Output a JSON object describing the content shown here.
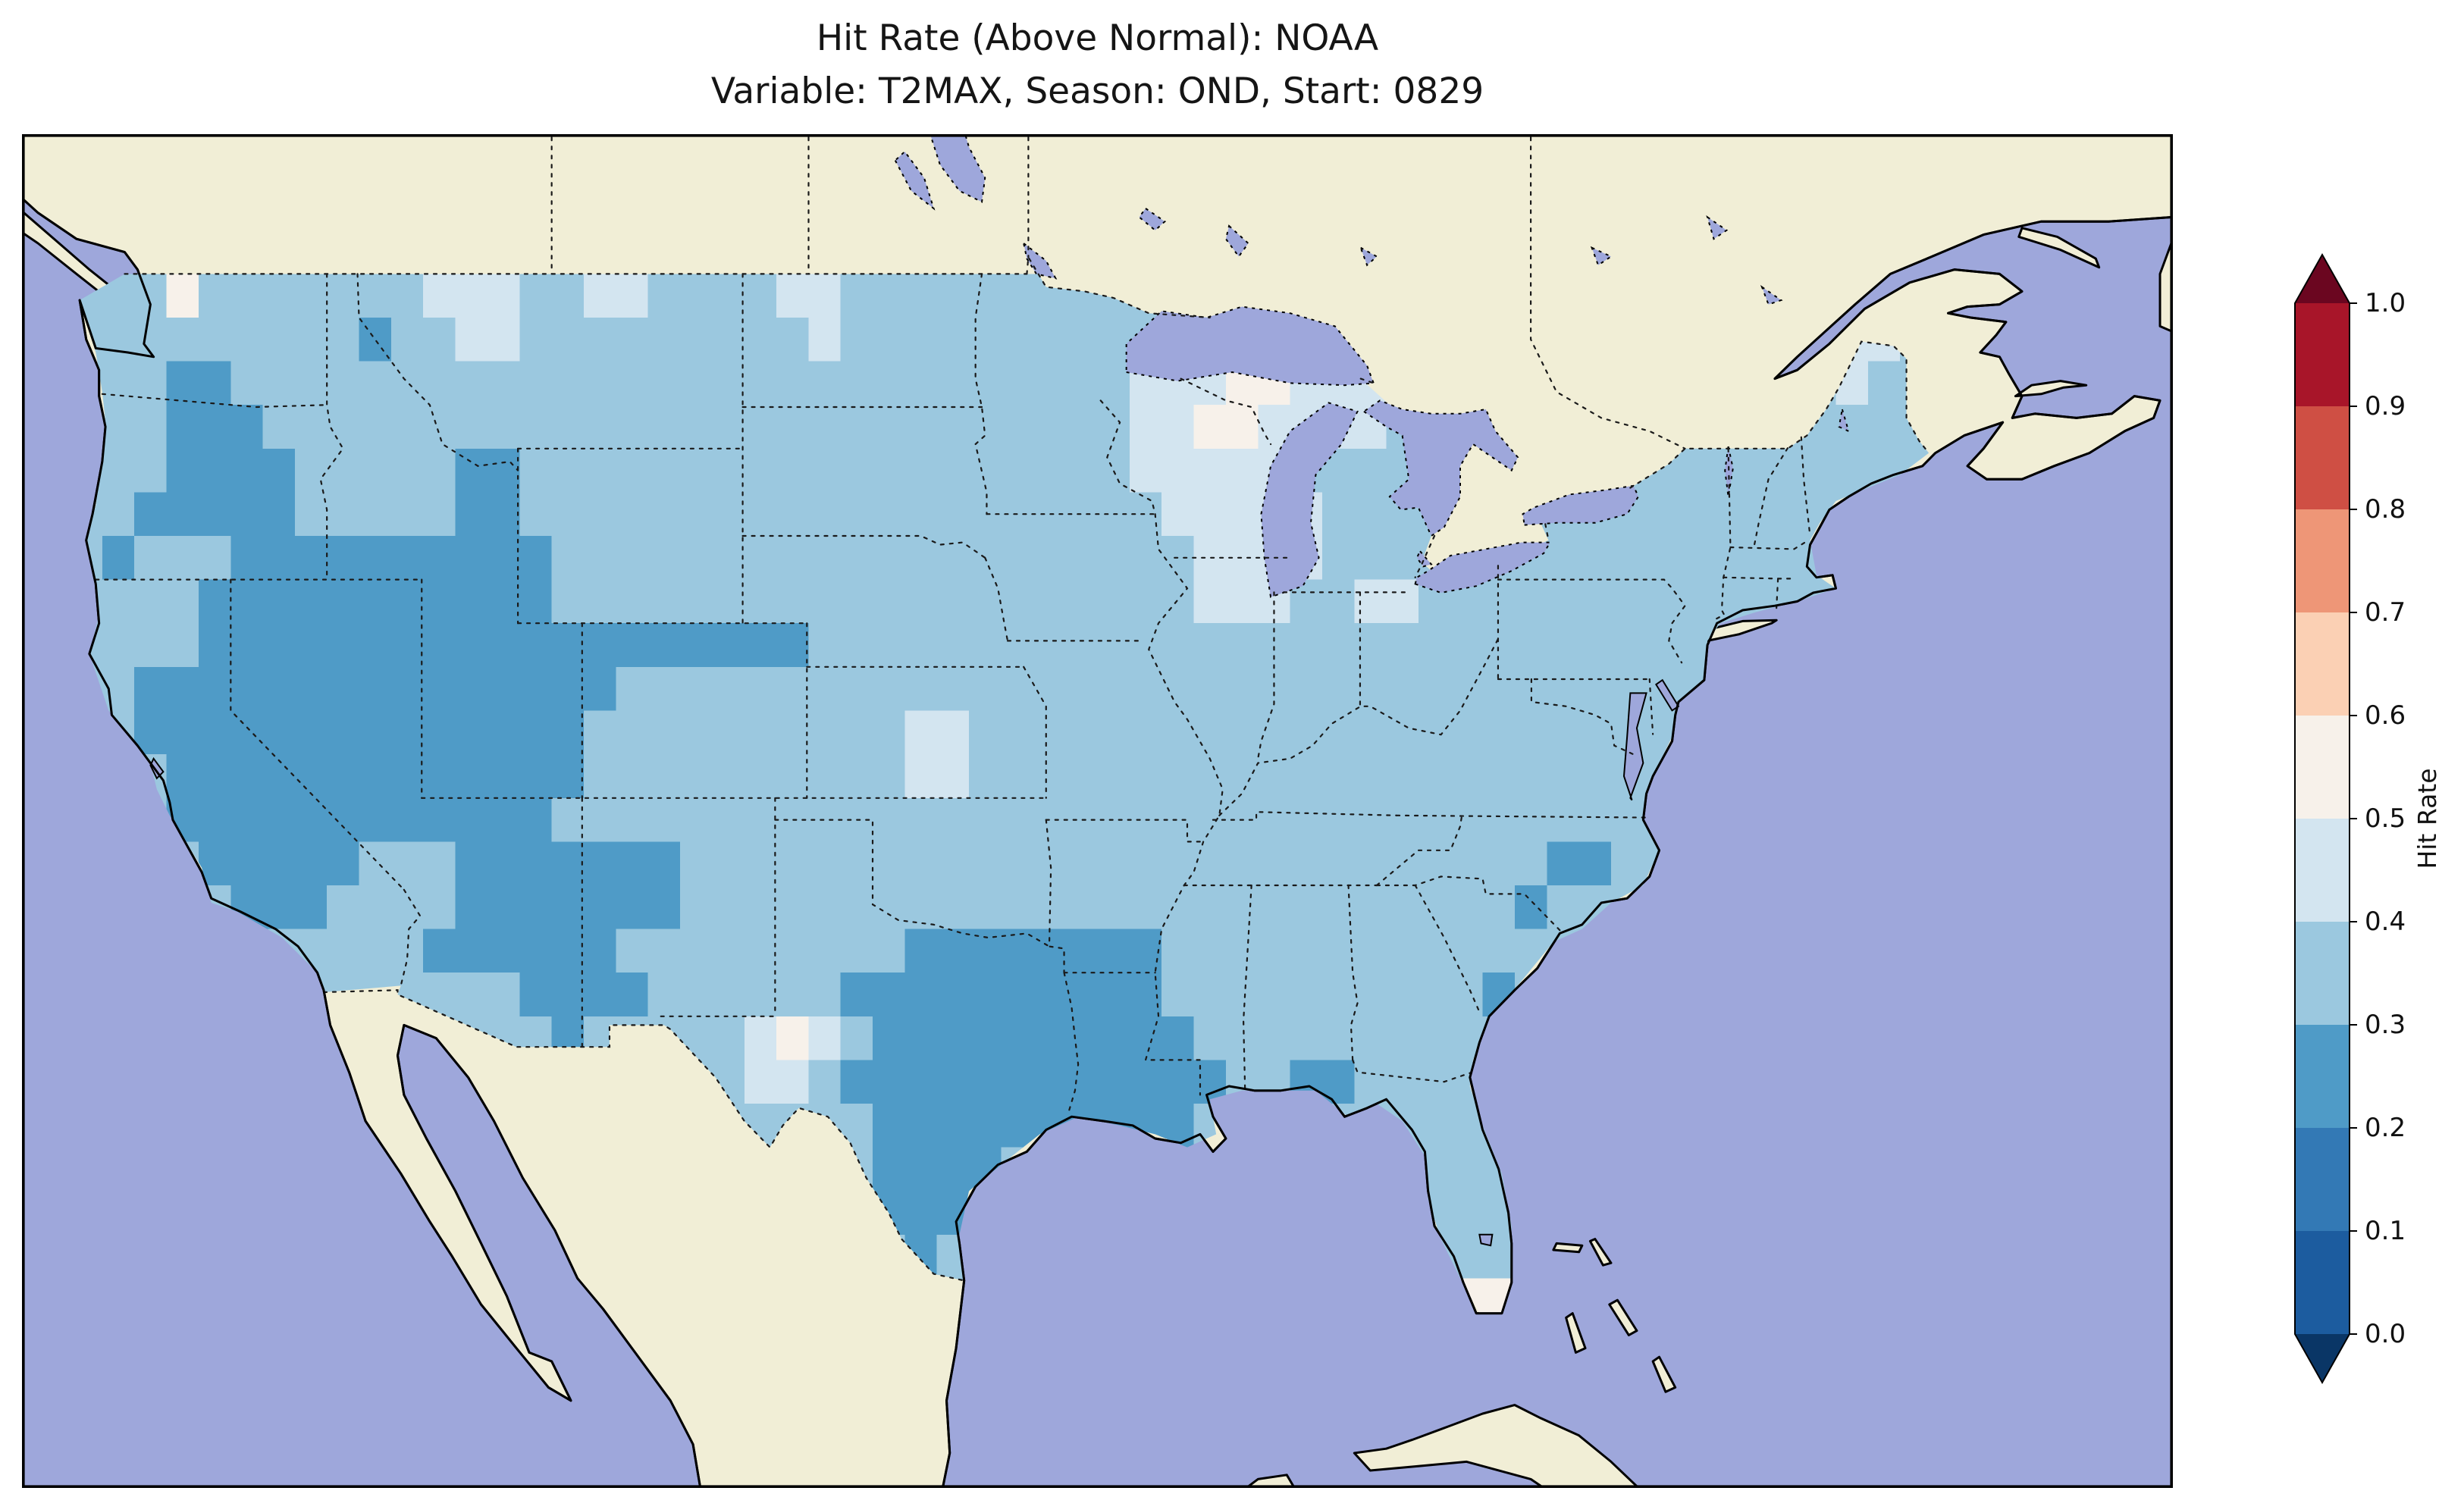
{
  "title": {
    "line1": "Hit Rate (Above Normal): NOAA",
    "line2": "Variable: T2MAX, Season: OND, Start: 0829"
  },
  "map": {
    "ocean_color": "#9ea7db",
    "land_color": "#f1eed6",
    "lake_color": "#9ea7db",
    "coast_color": "#000000",
    "border_color": "#1a1a1a"
  },
  "colorbar": {
    "label": "Hit Rate",
    "ticks": [
      "0.0",
      "0.1",
      "0.2",
      "0.3",
      "0.4",
      "0.5",
      "0.6",
      "0.7",
      "0.8",
      "0.9",
      "1.0"
    ],
    "segments": [
      {
        "range": "0.0-0.1",
        "color": "#1c5c9f"
      },
      {
        "range": "0.1-0.2",
        "color": "#3379b5"
      },
      {
        "range": "0.2-0.3",
        "color": "#4f9bc7"
      },
      {
        "range": "0.3-0.4",
        "color": "#9bc8df"
      },
      {
        "range": "0.4-0.5",
        "color": "#d3e5f0"
      },
      {
        "range": "0.5-0.6",
        "color": "#f7f1ea"
      },
      {
        "range": "0.6-0.7",
        "color": "#fbd0b4"
      },
      {
        "range": "0.7-0.8",
        "color": "#ee9677"
      },
      {
        "range": "0.8-0.9",
        "color": "#cf4f44"
      },
      {
        "range": "0.9-1.0",
        "color": "#a81529"
      }
    ],
    "under_color": "#0a3666",
    "over_color": "#6b0620"
  },
  "chart_data": {
    "type": "heatmap",
    "subtype": "gridded-map",
    "title": "Hit Rate (Above Normal): NOAA",
    "subtitle": "Variable: T2MAX, Season: OND, Start: 0829",
    "variable": "T2MAX",
    "season": "OND",
    "start": "0829",
    "source_label": "NOAA",
    "colorbar_label": "Hit Rate",
    "colorbar_range": [
      0.0,
      1.0
    ],
    "colorbar_tick_step": 0.1,
    "grid": {
      "lon_min": -125,
      "lat_max": 49,
      "cell_deg": 1,
      "legend": {
        "a": {
          "value_bin": "0.2-0.3",
          "color": "#4f9bc7"
        },
        "b": {
          "value_bin": "0.3-0.4",
          "color": "#9bc8df"
        },
        "c": {
          "value_bin": "0.4-0.5",
          "color": "#d3e5f0"
        },
        "d": {
          "value_bin": "0.5-0.6",
          "color": "#f7f1ea"
        }
      },
      "rows": [
        "bbbdbbbbbbbcccbbccbbbbccbbbbbbbbbbbbbbbbbbbbbbbbbbbbbbbbbb",
        "bbbbbbbbbabbccbbbbbbbbbcbbbbbbbbbbbbbbbbbbbbbbbbbbbbbbbccbb",
        "bbbaabbbbbbbbbbbbbbbbbbbbbbbbbbbbcccddccccbbbbbbbbbbbbbcbbb",
        "bbbaaabbbbbbbbbbbbbbbbbbbbbbbbbbbccddccccbbbbbbbbbbbbbbbbb",
        "bbbaaaabbbbbaabbbbbbbbbbbbbbbbbbbcccccbbbbbbbbbbbbbbbbbbbb",
        "bbaaaaabbbbbaabbbbbbbbbbbbbbbbbbbbcccccbbbbbbbbbbbbbbbbbbb",
        "babbbaaaaaaaaaabbbbbbbbbbbbbbbbbbbbccccbbbbbbbbbbbbbbbbbbb",
        "bbbbaaaaaaaaaaabbbbbbbbbbbbbbbbbbbbcccbbccbbbbbbbbbbbbbbbb",
        "bbbbaaaaaaaaaaaaaaaaaaabbbbbbbbbbbbbbbbbbbbbbbbbbbbbbbbbbb",
        "bbaaaaaaaaaaaaaaabbbbbbbbbbbbbbbbbbbbbbbbbbbbbbbbbbbbbbbbb",
        "bbaaaaaaaaaaaaaabbbbbbbbbbccbbbbbbbbbbbbbbbbbbbbbbbbbbbbbb",
        "bbbaaaaaaaaaaaaabbbbbbbbbbccbbbbbbbbbbbbbbbbbbbbbbbbbbbbbb",
        "bbbaaaaaaaaaaaabbbbbbbbbbbbbbbbbbbbbbbbbbbbbbbbbbbbbbbbbbb",
        "bbbbaaaaabbbaaaaaaabbbbbbbbbbbbbbbbbbbbbbbbbbbaabbbbbbbbbb",
        "bbbbbaaabbbbaaaaaaabbbbbbbbbbbbbbbbbbbbbbbbbbabbbbbbbbbbbb",
        "bbbbbbbbbbbaaaaaabbbbbbbbbaaaaaaaabbbbbbbbbbbbbbbbbbbbbbbb",
        "bbbbbbbbbbbbbbaaaabbbbbbaaaaaaaaaabbbbbbbbbbabbbbbbbbbbbbb",
        "bbbbbbbbbbbbbbbabbbbbcdcbaaaaaaaaaabbbbbbbbbbbbbbbbbbbbbbb",
        "bbbbbbbbbbbbbbbbbbbbbccbaaaaaaaaaaaabbaabbbbbbbbbbbbbbbbbb",
        "bbbbbbbbbbbbbbbbbbbbbbbbbaaaaaaaaaabbbbbbbbbbbbbbbbbbbbbbb",
        "bbbbbbbbbbbbbbbbbbbbbbbbbaaaabbbbbbbbbbbbbbbbbbbbbbbbbbbbb",
        "bbbbbbbbbbbbbbbbbbbbbbbbbaaabbbbbbbbbbbbbbbbbbbbbbbbbbbbbb",
        "bbbbbbbbbbbbbbbbbbbbbbbbbbabbbbbbbbbbbbbbbbbbbbbbbbbbbbbbb",
        "bbbbbbbbbbbbbbbbbbbbbbbbbbbbbbbbbbbbbbbbbbbddbbbbbbbbbbbbb",
        "bbbbbbbbbbbbbbbbbbbbbbbbbbbbbbbbbbbbbbbbbbbbbbbbbbbbbbbbb"
      ]
    }
  }
}
